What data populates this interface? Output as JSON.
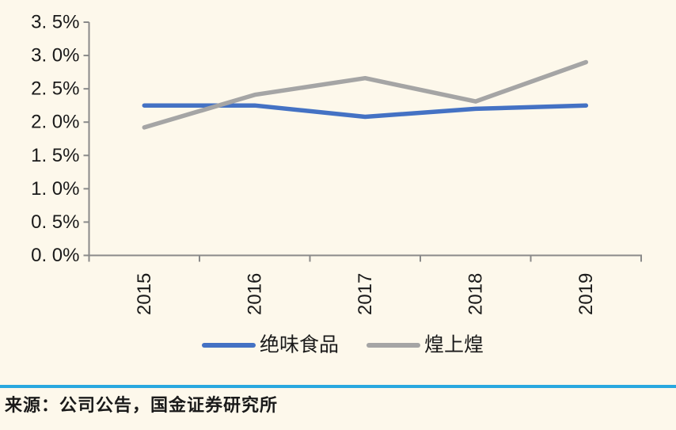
{
  "page": {
    "background": "#FDF8EB",
    "text_color": "#1A1A1A"
  },
  "chart_data": {
    "type": "line",
    "title": "",
    "xlabel": "",
    "ylabel": "",
    "categories": [
      "2015",
      "2016",
      "2017",
      "2018",
      "2019"
    ],
    "series": [
      {
        "name": "绝味食品",
        "color": "#4472C4",
        "values": [
          2.25,
          2.25,
          2.08,
          2.2,
          2.25
        ]
      },
      {
        "name": "煌上煌",
        "color": "#A5A5A5",
        "values": [
          1.92,
          2.41,
          2.66,
          2.31,
          2.9
        ]
      }
    ],
    "ylim": [
      0,
      3.5
    ],
    "ytick_step": 0.5,
    "ytick_labels": [
      "0. 0%",
      "0. 5%",
      "1. 0%",
      "1. 5%",
      "2. 0%",
      "2. 5%",
      "3. 0%",
      "3. 5%"
    ],
    "grid": false,
    "legend_position": "bottom",
    "axis_color": "#8A8A8A",
    "label_color": "#1A1A1A"
  },
  "footer": {
    "divider_color": "#29A8DF",
    "source_text": "来源：公司公告，国金证券研究所"
  }
}
